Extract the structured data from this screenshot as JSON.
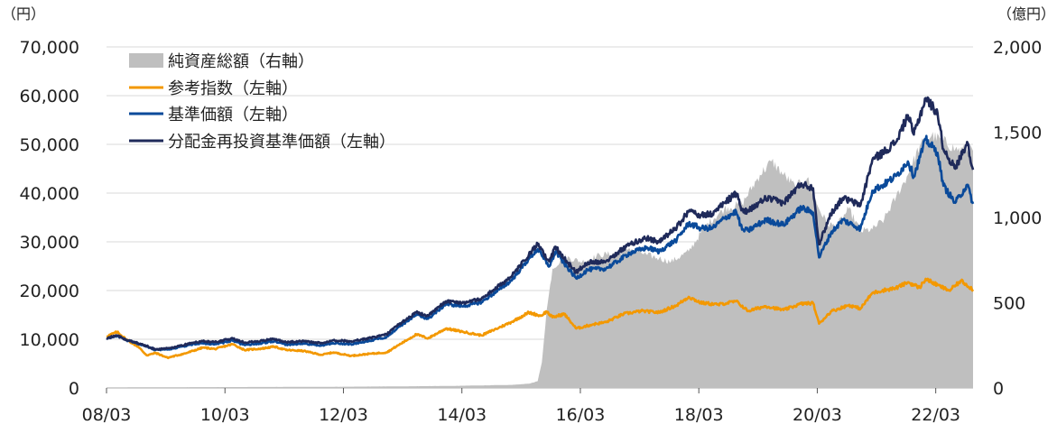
{
  "chart_data": {
    "type": "line",
    "left_axis": {
      "unit": "（円）",
      "ticks": [
        "0",
        "10,000",
        "20,000",
        "30,000",
        "40,000",
        "50,000",
        "60,000",
        "70,000"
      ],
      "ylim": [
        0,
        70000
      ]
    },
    "right_axis": {
      "unit": "（億円）",
      "ticks": [
        "0",
        "500",
        "1,000",
        "1,500",
        "2,000"
      ],
      "ylim": [
        0,
        2000
      ]
    },
    "x_axis": {
      "ticks": [
        "08/03",
        "10/03",
        "12/03",
        "14/03",
        "16/03",
        "18/03",
        "20/03",
        "22/03"
      ],
      "range": [
        2008.17,
        2022.8
      ]
    },
    "grid": "horizontal",
    "legend_position": "top-left",
    "colors": {
      "area": "#bfbfbf",
      "orange": "#f39800",
      "blue": "#0a4a9a",
      "navy": "#1f2a5a"
    },
    "series": [
      {
        "name": "純資産総額（右軸）",
        "kind": "area",
        "axis": "right",
        "points": [
          [
            2008.17,
            3
          ],
          [
            2009.0,
            4
          ],
          [
            2010.0,
            5
          ],
          [
            2011.0,
            6
          ],
          [
            2012.0,
            7
          ],
          [
            2013.0,
            9
          ],
          [
            2014.0,
            12
          ],
          [
            2015.0,
            18
          ],
          [
            2015.3,
            25
          ],
          [
            2015.45,
            40
          ],
          [
            2015.52,
            150
          ],
          [
            2015.6,
            450
          ],
          [
            2015.7,
            700
          ],
          [
            2015.9,
            770
          ],
          [
            2016.2,
            740
          ],
          [
            2016.5,
            780
          ],
          [
            2016.8,
            790
          ],
          [
            2017.0,
            820
          ],
          [
            2017.3,
            780
          ],
          [
            2017.5,
            760
          ],
          [
            2017.7,
            740
          ],
          [
            2018.0,
            800
          ],
          [
            2018.3,
            960
          ],
          [
            2018.6,
            1050
          ],
          [
            2018.9,
            1080
          ],
          [
            2019.2,
            1250
          ],
          [
            2019.4,
            1330
          ],
          [
            2019.6,
            1250
          ],
          [
            2019.8,
            1180
          ],
          [
            2020.0,
            1230
          ],
          [
            2020.2,
            1050
          ],
          [
            2020.35,
            960
          ],
          [
            2020.5,
            950
          ],
          [
            2020.7,
            1050
          ],
          [
            2020.9,
            920
          ],
          [
            2021.1,
            930
          ],
          [
            2021.3,
            990
          ],
          [
            2021.5,
            1120
          ],
          [
            2021.7,
            1250
          ],
          [
            2021.9,
            1420
          ],
          [
            2022.1,
            1480
          ],
          [
            2022.3,
            1450
          ],
          [
            2022.5,
            1400
          ],
          [
            2022.8,
            1390
          ]
        ]
      },
      {
        "name": "参考指数（左軸）",
        "kind": "line",
        "axis": "left",
        "points": [
          [
            2008.17,
            10600
          ],
          [
            2008.35,
            11500
          ],
          [
            2008.5,
            10000
          ],
          [
            2008.7,
            8500
          ],
          [
            2008.85,
            6700
          ],
          [
            2009.0,
            7200
          ],
          [
            2009.2,
            6200
          ],
          [
            2009.5,
            7100
          ],
          [
            2009.8,
            8300
          ],
          [
            2010.0,
            8000
          ],
          [
            2010.3,
            9000
          ],
          [
            2010.5,
            7800
          ],
          [
            2010.8,
            8100
          ],
          [
            2011.0,
            8500
          ],
          [
            2011.2,
            7800
          ],
          [
            2011.5,
            7600
          ],
          [
            2011.8,
            6800
          ],
          [
            2012.0,
            7300
          ],
          [
            2012.3,
            6600
          ],
          [
            2012.6,
            7000
          ],
          [
            2012.9,
            7300
          ],
          [
            2013.1,
            8800
          ],
          [
            2013.4,
            11000
          ],
          [
            2013.6,
            10200
          ],
          [
            2013.9,
            12200
          ],
          [
            2014.2,
            11500
          ],
          [
            2014.5,
            10800
          ],
          [
            2014.8,
            12400
          ],
          [
            2015.0,
            13500
          ],
          [
            2015.3,
            15500
          ],
          [
            2015.5,
            14800
          ],
          [
            2015.6,
            15700
          ],
          [
            2015.7,
            14500
          ],
          [
            2015.9,
            15200
          ],
          [
            2016.1,
            12200
          ],
          [
            2016.4,
            13100
          ],
          [
            2016.6,
            13500
          ],
          [
            2016.9,
            15200
          ],
          [
            2017.2,
            15800
          ],
          [
            2017.5,
            15500
          ],
          [
            2017.8,
            17000
          ],
          [
            2018.0,
            18700
          ],
          [
            2018.2,
            17500
          ],
          [
            2018.5,
            17100
          ],
          [
            2018.8,
            17800
          ],
          [
            2019.0,
            15800
          ],
          [
            2019.3,
            16800
          ],
          [
            2019.6,
            16000
          ],
          [
            2019.9,
            17300
          ],
          [
            2020.1,
            17400
          ],
          [
            2020.2,
            13200
          ],
          [
            2020.4,
            15700
          ],
          [
            2020.7,
            17000
          ],
          [
            2020.9,
            16300
          ],
          [
            2021.1,
            19500
          ],
          [
            2021.3,
            20100
          ],
          [
            2021.5,
            20500
          ],
          [
            2021.7,
            21700
          ],
          [
            2021.9,
            20600
          ],
          [
            2022.0,
            22400
          ],
          [
            2022.2,
            21100
          ],
          [
            2022.4,
            20000
          ],
          [
            2022.6,
            22000
          ],
          [
            2022.8,
            20200
          ]
        ]
      },
      {
        "name": "基準価額（左軸）",
        "kind": "line",
        "axis": "left",
        "points": [
          [
            2008.17,
            10200
          ],
          [
            2008.35,
            10700
          ],
          [
            2008.5,
            9800
          ],
          [
            2008.7,
            9100
          ],
          [
            2008.85,
            8500
          ],
          [
            2009.0,
            7800
          ],
          [
            2009.3,
            8100
          ],
          [
            2009.6,
            8900
          ],
          [
            2009.8,
            9200
          ],
          [
            2010.0,
            9000
          ],
          [
            2010.3,
            9700
          ],
          [
            2010.5,
            8800
          ],
          [
            2010.8,
            9200
          ],
          [
            2011.0,
            9600
          ],
          [
            2011.2,
            8900
          ],
          [
            2011.5,
            9100
          ],
          [
            2011.8,
            8700
          ],
          [
            2012.0,
            9200
          ],
          [
            2012.3,
            9000
          ],
          [
            2012.6,
            9600
          ],
          [
            2012.9,
            10500
          ],
          [
            2013.1,
            12500
          ],
          [
            2013.4,
            15000
          ],
          [
            2013.6,
            14200
          ],
          [
            2013.9,
            17200
          ],
          [
            2014.2,
            16800
          ],
          [
            2014.5,
            17600
          ],
          [
            2014.8,
            20200
          ],
          [
            2015.0,
            22000
          ],
          [
            2015.3,
            26500
          ],
          [
            2015.45,
            28500
          ],
          [
            2015.55,
            26500
          ],
          [
            2015.65,
            25000
          ],
          [
            2015.75,
            28000
          ],
          [
            2015.9,
            25500
          ],
          [
            2016.1,
            22500
          ],
          [
            2016.3,
            24300
          ],
          [
            2016.6,
            24500
          ],
          [
            2016.8,
            26000
          ],
          [
            2017.0,
            27700
          ],
          [
            2017.3,
            28800
          ],
          [
            2017.5,
            28000
          ],
          [
            2017.8,
            30500
          ],
          [
            2018.0,
            33800
          ],
          [
            2018.2,
            32800
          ],
          [
            2018.4,
            32800
          ],
          [
            2018.6,
            34800
          ],
          [
            2018.8,
            36200
          ],
          [
            2018.9,
            32500
          ],
          [
            2019.0,
            32300
          ],
          [
            2019.3,
            34500
          ],
          [
            2019.6,
            33500
          ],
          [
            2019.9,
            37000
          ],
          [
            2020.1,
            36000
          ],
          [
            2020.2,
            26800
          ],
          [
            2020.4,
            31800
          ],
          [
            2020.6,
            34500
          ],
          [
            2020.9,
            32700
          ],
          [
            2021.1,
            40500
          ],
          [
            2021.3,
            41800
          ],
          [
            2021.5,
            43500
          ],
          [
            2021.7,
            46500
          ],
          [
            2021.8,
            43500
          ],
          [
            2022.0,
            51000
          ],
          [
            2022.2,
            48300
          ],
          [
            2022.3,
            41500
          ],
          [
            2022.5,
            38000
          ],
          [
            2022.7,
            41700
          ],
          [
            2022.8,
            37800
          ]
        ]
      },
      {
        "name": "分配金再投資基準価額（左軸）",
        "kind": "line",
        "axis": "left",
        "points": [
          [
            2008.17,
            10200
          ],
          [
            2008.35,
            10800
          ],
          [
            2008.5,
            9900
          ],
          [
            2008.7,
            9200
          ],
          [
            2008.85,
            8600
          ],
          [
            2009.0,
            7900
          ],
          [
            2009.3,
            8300
          ],
          [
            2009.6,
            9200
          ],
          [
            2009.8,
            9600
          ],
          [
            2010.0,
            9400
          ],
          [
            2010.3,
            10200
          ],
          [
            2010.5,
            9300
          ],
          [
            2010.8,
            9700
          ],
          [
            2011.0,
            10100
          ],
          [
            2011.2,
            9400
          ],
          [
            2011.5,
            9600
          ],
          [
            2011.8,
            9200
          ],
          [
            2012.0,
            9800
          ],
          [
            2012.3,
            9600
          ],
          [
            2012.6,
            10200
          ],
          [
            2012.9,
            11000
          ],
          [
            2013.1,
            13000
          ],
          [
            2013.4,
            15500
          ],
          [
            2013.6,
            14800
          ],
          [
            2013.9,
            17800
          ],
          [
            2014.2,
            17500
          ],
          [
            2014.5,
            18300
          ],
          [
            2014.8,
            21000
          ],
          [
            2015.0,
            22800
          ],
          [
            2015.3,
            27300
          ],
          [
            2015.45,
            29500
          ],
          [
            2015.55,
            27500
          ],
          [
            2015.65,
            26000
          ],
          [
            2015.75,
            29000
          ],
          [
            2015.9,
            26500
          ],
          [
            2016.1,
            23800
          ],
          [
            2016.3,
            25800
          ],
          [
            2016.6,
            26000
          ],
          [
            2016.8,
            27800
          ],
          [
            2017.0,
            29500
          ],
          [
            2017.3,
            30800
          ],
          [
            2017.5,
            30000
          ],
          [
            2017.8,
            33000
          ],
          [
            2018.0,
            36300
          ],
          [
            2018.2,
            35500
          ],
          [
            2018.4,
            35700
          ],
          [
            2018.6,
            38000
          ],
          [
            2018.8,
            40000
          ],
          [
            2018.9,
            36500
          ],
          [
            2019.0,
            36200
          ],
          [
            2019.3,
            39000
          ],
          [
            2019.6,
            38000
          ],
          [
            2019.9,
            42000
          ],
          [
            2020.1,
            41000
          ],
          [
            2020.2,
            29500
          ],
          [
            2020.4,
            35800
          ],
          [
            2020.6,
            39000
          ],
          [
            2020.9,
            37500
          ],
          [
            2021.1,
            46800
          ],
          [
            2021.3,
            48500
          ],
          [
            2021.5,
            50500
          ],
          [
            2021.7,
            56000
          ],
          [
            2021.8,
            52000
          ],
          [
            2022.0,
            59500
          ],
          [
            2022.2,
            56500
          ],
          [
            2022.3,
            49000
          ],
          [
            2022.5,
            45000
          ],
          [
            2022.7,
            50500
          ],
          [
            2022.8,
            44800
          ]
        ]
      }
    ]
  }
}
